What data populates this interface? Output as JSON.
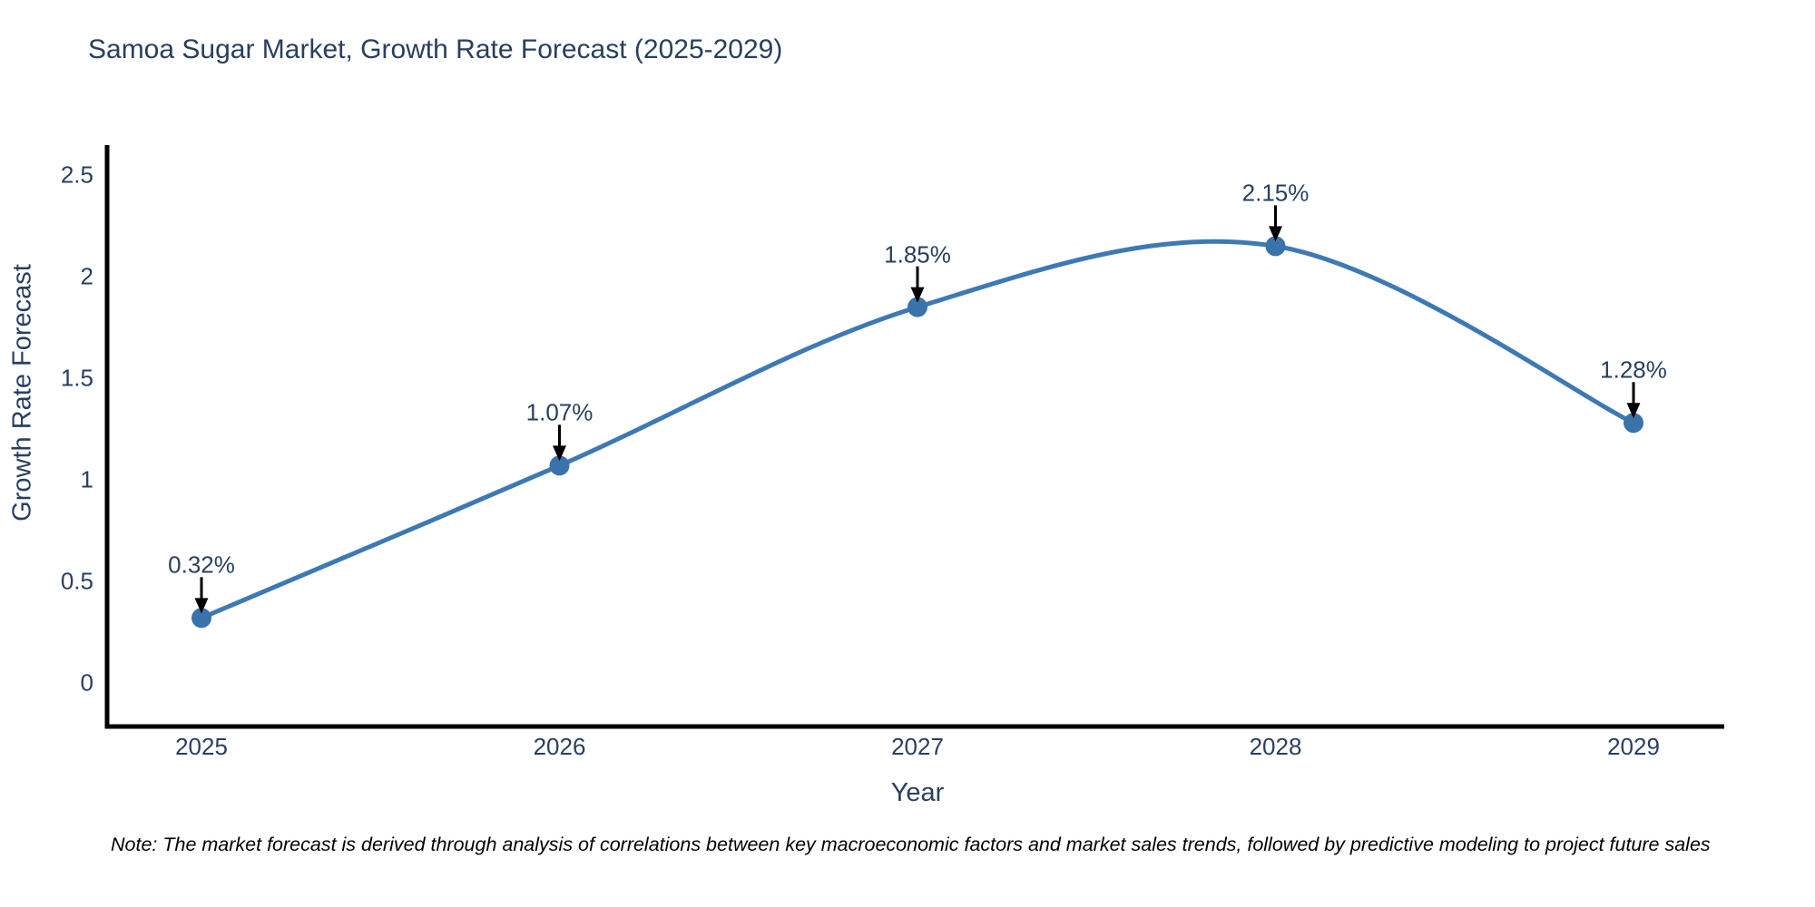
{
  "title": "Samoa Sugar Market, Growth Rate Forecast (2025-2029)",
  "note": "Note: The market forecast is derived through analysis of correlations between key macroeconomic factors and market sales trends, followed by predictive modeling to project future sales",
  "chart_data": {
    "type": "line",
    "title": "Samoa Sugar Market, Growth Rate Forecast (2025-2029)",
    "xlabel": "Year",
    "ylabel": "Growth Rate Forecast",
    "x": [
      2025,
      2026,
      2027,
      2028,
      2029
    ],
    "xtick_labels": [
      "2025",
      "2026",
      "2027",
      "2028",
      "2029"
    ],
    "series": [
      {
        "name": "Growth Rate Forecast",
        "values": [
          0.32,
          1.07,
          1.85,
          2.15,
          1.28
        ]
      }
    ],
    "point_labels": [
      "0.32%",
      "1.07%",
      "1.85%",
      "2.15%",
      "1.28%"
    ],
    "yticks": [
      0,
      0.5,
      1,
      1.5,
      2,
      2.5
    ],
    "ytick_labels": [
      "0",
      "0.5",
      "1",
      "1.5",
      "2",
      "2.5"
    ],
    "ylim": [
      -0.21,
      2.65
    ],
    "grid": false,
    "legend": "none",
    "line_shape": "spline",
    "colors": {
      "line": "#3e79b4",
      "marker": "#3a72ab",
      "axis": "#000000",
      "text": "#2a3f5f",
      "arrow": "#000000",
      "background": "#ffffff"
    }
  }
}
